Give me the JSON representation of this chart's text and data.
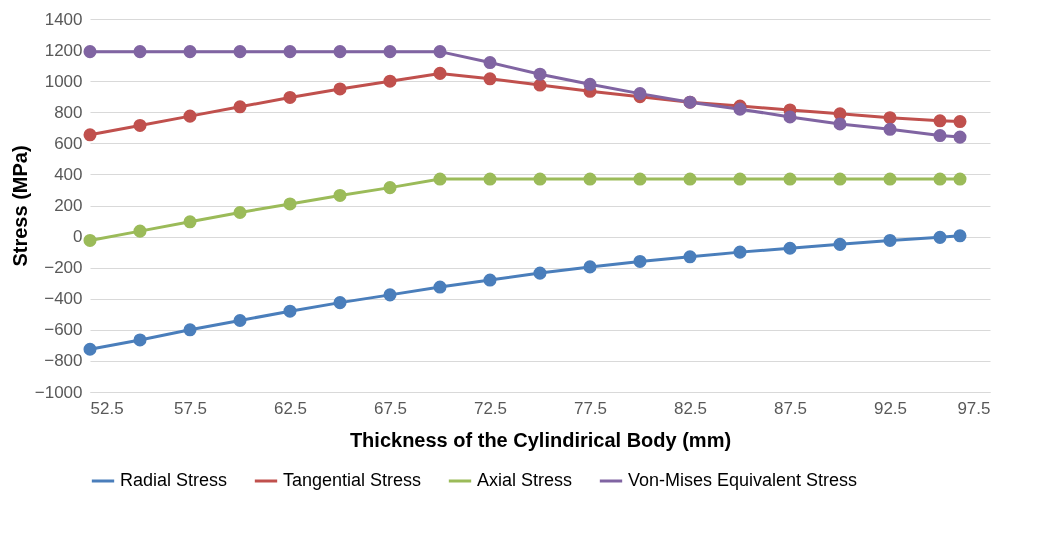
{
  "chart_data": {
    "type": "line",
    "xlabel": "Thickness of the Cylindirical Body (mm)",
    "ylabel": "Stress (MPa)",
    "x": [
      52.5,
      55,
      57.5,
      60,
      62.5,
      65,
      67.5,
      70,
      72.5,
      75,
      77.5,
      80,
      82.5,
      85,
      87.5,
      90,
      92.5,
      95,
      96
    ],
    "xlim": [
      52.5,
      97.5
    ],
    "xticks": [
      52.5,
      57.5,
      62.5,
      67.5,
      72.5,
      77.5,
      82.5,
      87.5,
      92.5,
      97.5
    ],
    "ylim": [
      -1000,
      1400
    ],
    "yticks": [
      -1000,
      -800,
      -600,
      -400,
      -200,
      0,
      200,
      400,
      600,
      800,
      1000,
      1200,
      1400
    ],
    "grid": "y",
    "legend": "bottom",
    "marker": "circle",
    "line_style": "solid",
    "series": [
      {
        "name": "Radial Stress",
        "color": "#4a7ebb",
        "values": [
          -725,
          -665,
          -600,
          -540,
          -480,
          -425,
          -375,
          -325,
          -280,
          -235,
          -195,
          -160,
          -130,
          -100,
          -75,
          -50,
          -25,
          -5,
          5
        ]
      },
      {
        "name": "Tangential Stress",
        "color": "#c0504d",
        "values": [
          655,
          715,
          775,
          835,
          895,
          950,
          1000,
          1050,
          1015,
          975,
          935,
          900,
          865,
          840,
          815,
          790,
          765,
          745,
          740
        ]
      },
      {
        "name": "Axial Stress",
        "color": "#9bbb59",
        "values": [
          -25,
          35,
          95,
          155,
          210,
          265,
          315,
          370,
          370,
          370,
          370,
          370,
          370,
          370,
          370,
          370,
          370,
          370,
          370
        ]
      },
      {
        "name": "Von-Mises Equivalent Stress",
        "color": "#8064a2",
        "values": [
          1190,
          1190,
          1190,
          1190,
          1190,
          1190,
          1190,
          1190,
          1120,
          1045,
          980,
          920,
          865,
          820,
          770,
          725,
          690,
          650,
          640
        ]
      }
    ]
  }
}
